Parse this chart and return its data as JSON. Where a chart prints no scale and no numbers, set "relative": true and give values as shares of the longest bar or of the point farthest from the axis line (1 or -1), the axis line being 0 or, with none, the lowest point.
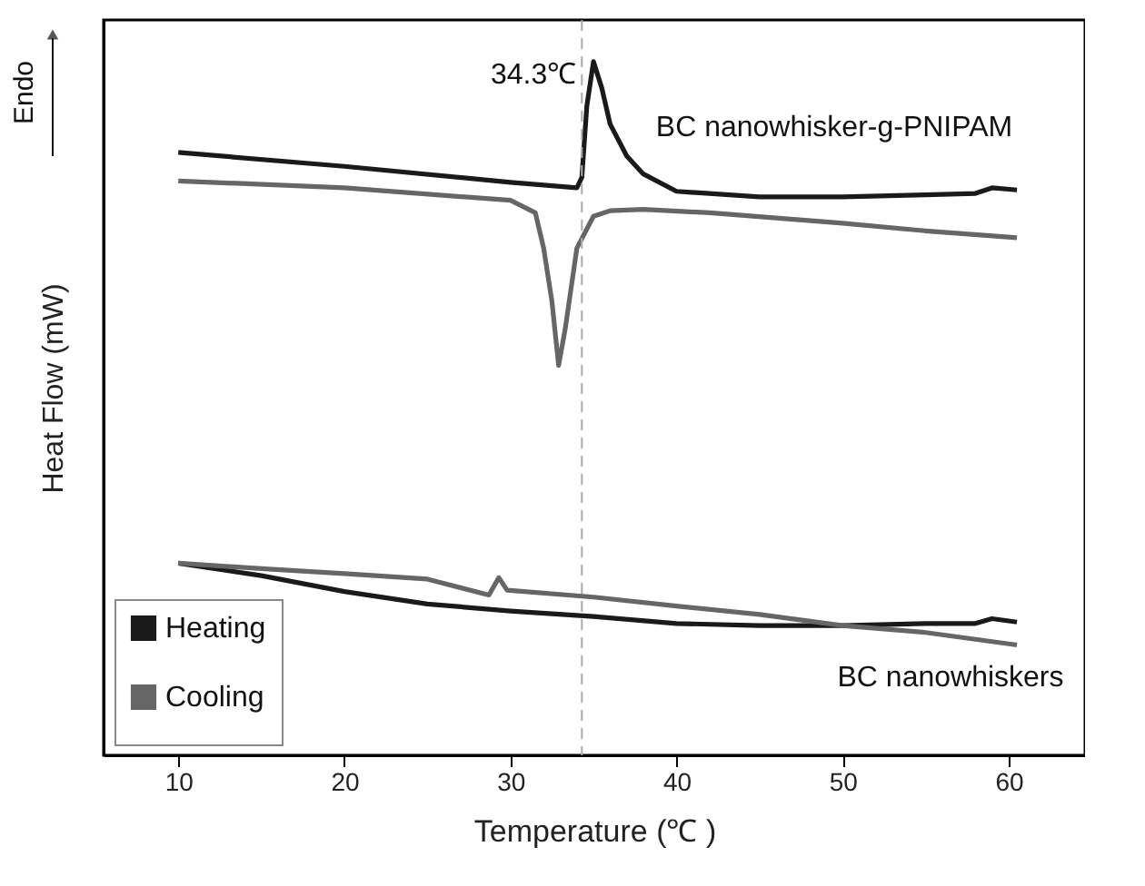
{
  "chart_data": {
    "type": "line",
    "relative": true,
    "xlabel": "Temperature (℃ )",
    "ylabel": "Heat Flow (mW)",
    "xlim": [
      5.5,
      64.6
    ],
    "xticks": [
      10,
      20,
      30,
      40,
      50,
      60
    ],
    "grid": false,
    "legend": "bottom left",
    "marker": "none",
    "line_style": "solid",
    "series": [
      {
        "name": "Heating",
        "color": "#1a1a1a",
        "x": [
          10,
          20,
          30,
          34,
          34.3,
          34.6,
          35,
          35.5,
          36,
          37,
          38,
          40,
          45,
          50,
          55,
          58,
          59,
          60.5
        ],
        "values": [
          0.869,
          0.849,
          0.826,
          0.818,
          0.833,
          0.936,
          1.0,
          0.962,
          0.91,
          0.864,
          0.838,
          0.813,
          0.805,
          0.805,
          0.808,
          0.81,
          0.818,
          0.815
        ]
      },
      {
        "name": "Cooling",
        "color": "#666666",
        "x": [
          10,
          20,
          30,
          31.5,
          32,
          32.5,
          32.9,
          33.3,
          34,
          35,
          36,
          38,
          42,
          50,
          55,
          60.5
        ],
        "values": [
          0.828,
          0.818,
          0.8,
          0.782,
          0.731,
          0.654,
          0.562,
          0.615,
          0.731,
          0.777,
          0.785,
          0.787,
          0.782,
          0.767,
          0.756,
          0.746
        ]
      },
      {
        "color": "#1a1a1a",
        "x": [
          10,
          15,
          20,
          25,
          30,
          35,
          40,
          45,
          50,
          55,
          58,
          59,
          60.5
        ],
        "values": [
          0.277,
          0.259,
          0.236,
          0.218,
          0.208,
          0.2,
          0.19,
          0.187,
          0.187,
          0.19,
          0.19,
          0.197,
          0.192
        ]
      },
      {
        "color": "#666666",
        "x": [
          10,
          15,
          20,
          25,
          28.7,
          29.3,
          29.8,
          35,
          40,
          45,
          50,
          55,
          60.5
        ],
        "values": [
          0.277,
          0.269,
          0.262,
          0.254,
          0.231,
          0.256,
          0.238,
          0.228,
          0.215,
          0.203,
          0.187,
          0.177,
          0.159
        ]
      }
    ],
    "ref_lines": [
      {
        "axis": "x",
        "value": 34.3,
        "label": "34.3℃",
        "color": "#aaaaaa",
        "line_style": "dashed"
      }
    ],
    "annotations": [
      "BC nanowhisker-g-PNIPAM",
      "BC nanowhiskers",
      "Endo"
    ]
  }
}
